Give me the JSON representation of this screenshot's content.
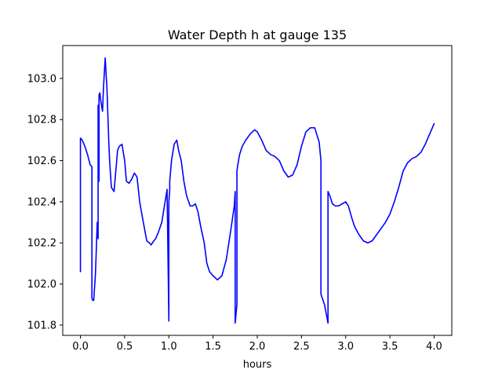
{
  "chart_data": {
    "type": "line",
    "title": "Water Depth h at gauge 135",
    "xlabel": "hours",
    "ylabel": "",
    "xlim": [
      -0.2,
      4.2
    ],
    "ylim": [
      101.75,
      103.16
    ],
    "x_ticks": [
      0.0,
      0.5,
      1.0,
      1.5,
      2.0,
      2.5,
      3.0,
      3.5,
      4.0
    ],
    "x_tick_labels": [
      "0.0",
      "0.5",
      "1.0",
      "1.5",
      "2.0",
      "2.5",
      "3.0",
      "3.5",
      "4.0"
    ],
    "y_ticks": [
      101.8,
      102.0,
      102.2,
      102.4,
      102.6,
      102.8,
      103.0
    ],
    "y_tick_labels": [
      "101.8",
      "102.0",
      "102.2",
      "102.4",
      "102.6",
      "102.8",
      "103.0"
    ],
    "grid": false,
    "legend": "none",
    "series": [
      {
        "color": "#0000ff",
        "x": [
          0.0,
          0.0,
          0.02,
          0.05,
          0.08,
          0.11,
          0.13,
          0.13,
          0.14,
          0.15,
          0.17,
          0.19,
          0.2,
          0.2,
          0.21,
          0.21,
          0.22,
          0.23,
          0.25,
          0.26,
          0.28,
          0.3,
          0.32,
          0.33,
          0.35,
          0.38,
          0.4,
          0.42,
          0.44,
          0.47,
          0.5,
          0.52,
          0.55,
          0.58,
          0.61,
          0.64,
          0.67,
          0.69,
          0.72,
          0.75,
          0.78,
          0.8,
          0.83,
          0.85,
          0.88,
          0.92,
          0.95,
          0.98,
          1.0,
          1.0,
          1.01,
          1.01,
          1.03,
          1.06,
          1.09,
          1.11,
          1.14,
          1.17,
          1.2,
          1.24,
          1.27,
          1.3,
          1.33,
          1.36,
          1.4,
          1.43,
          1.46,
          1.5,
          1.55,
          1.6,
          1.65,
          1.7,
          1.74,
          1.75,
          1.75,
          1.77,
          1.77,
          1.78,
          1.8,
          1.83,
          1.87,
          1.92,
          1.97,
          2.0,
          2.05,
          2.1,
          2.15,
          2.2,
          2.25,
          2.3,
          2.35,
          2.4,
          2.45,
          2.5,
          2.55,
          2.6,
          2.65,
          2.7,
          2.72,
          2.72,
          2.76,
          2.8,
          2.8,
          2.82,
          2.85,
          2.88,
          2.92,
          2.96,
          3.0,
          3.03,
          3.07,
          3.1,
          3.15,
          3.2,
          3.25,
          3.3,
          3.35,
          3.4,
          3.45,
          3.5,
          3.55,
          3.6,
          3.65,
          3.7,
          3.75,
          3.8,
          3.85,
          3.9,
          3.95,
          4.0
        ],
        "y": [
          102.06,
          102.71,
          102.7,
          102.67,
          102.63,
          102.58,
          102.57,
          101.93,
          101.92,
          101.92,
          102.05,
          102.3,
          102.22,
          102.87,
          102.5,
          102.92,
          102.93,
          102.89,
          102.84,
          102.95,
          103.1,
          102.95,
          102.7,
          102.6,
          102.47,
          102.45,
          102.55,
          102.65,
          102.67,
          102.68,
          102.6,
          102.5,
          102.49,
          102.51,
          102.54,
          102.52,
          102.4,
          102.35,
          102.28,
          102.21,
          102.2,
          102.19,
          102.21,
          102.22,
          102.25,
          102.3,
          102.38,
          102.46,
          101.82,
          102.4,
          102.46,
          102.5,
          102.6,
          102.68,
          102.7,
          102.65,
          102.6,
          102.5,
          102.43,
          102.38,
          102.38,
          102.39,
          102.35,
          102.28,
          102.2,
          102.1,
          102.06,
          102.04,
          102.02,
          102.04,
          102.12,
          102.26,
          102.38,
          102.45,
          101.81,
          101.9,
          102.55,
          102.58,
          102.63,
          102.67,
          102.7,
          102.73,
          102.75,
          102.74,
          102.7,
          102.65,
          102.63,
          102.62,
          102.6,
          102.55,
          102.52,
          102.53,
          102.58,
          102.67,
          102.74,
          102.76,
          102.76,
          102.69,
          102.6,
          101.95,
          101.9,
          101.81,
          102.45,
          102.43,
          102.39,
          102.38,
          102.38,
          102.39,
          102.4,
          102.38,
          102.32,
          102.28,
          102.24,
          102.21,
          102.2,
          102.21,
          102.24,
          102.27,
          102.3,
          102.34,
          102.4,
          102.47,
          102.55,
          102.59,
          102.61,
          102.62,
          102.64,
          102.68,
          102.73,
          102.78
        ]
      }
    ]
  }
}
